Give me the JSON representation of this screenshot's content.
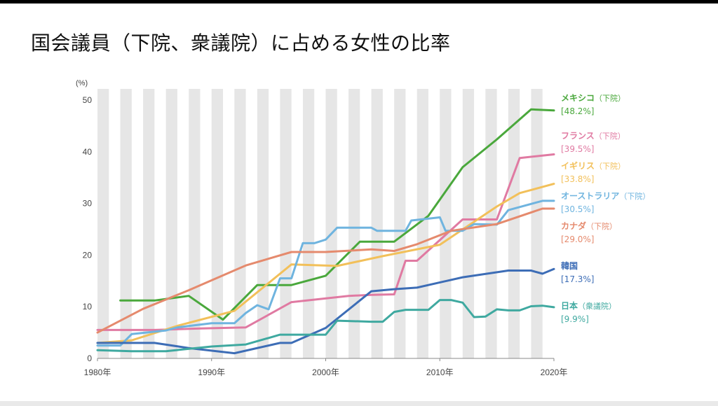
{
  "page": {
    "title": "国会議員（下院、衆議院）に占める女性の比率"
  },
  "chart_data": {
    "type": "line",
    "title": "国会議員（下院、衆議院）に占める女性の比率",
    "ylabel": "(%)",
    "xlabel": "",
    "xlim": [
      1980,
      2020
    ],
    "ylim": [
      0,
      50
    ],
    "x_ticks": [
      {
        "value": 1980,
        "label": "1980年"
      },
      {
        "value": 1990,
        "label": "1990年"
      },
      {
        "value": 2000,
        "label": "2000年"
      },
      {
        "value": 2010,
        "label": "2010年"
      },
      {
        "value": 2020,
        "label": "2020年"
      }
    ],
    "y_ticks": [
      {
        "value": 0,
        "label": "0"
      },
      {
        "value": 10,
        "label": "10"
      },
      {
        "value": 20,
        "label": "20"
      },
      {
        "value": 30,
        "label": "30"
      },
      {
        "value": 40,
        "label": "40"
      },
      {
        "value": 50,
        "label": "50"
      }
    ],
    "grid": "alternating vertical year bands",
    "legend_position": "right",
    "series": [
      {
        "key": "mexico",
        "name": "メキシコ",
        "note": "（下院）",
        "value_label": "[48.2%]",
        "color": "#4aa83c",
        "points": [
          [
            1982,
            11.2
          ],
          [
            1985,
            11.2
          ],
          [
            1988,
            12.1
          ],
          [
            1991,
            7.5
          ],
          [
            1994,
            14.2
          ],
          [
            1997,
            14.2
          ],
          [
            2000,
            16
          ],
          [
            2003,
            22.6
          ],
          [
            2006,
            22.6
          ],
          [
            2009,
            27.6
          ],
          [
            2012,
            37
          ],
          [
            2015,
            42.4
          ],
          [
            2018,
            48.2
          ],
          [
            2020,
            48
          ]
        ]
      },
      {
        "key": "france",
        "name": "フランス",
        "note": "（下院）",
        "value_label": "[39.5%]",
        "color": "#e07aa2",
        "points": [
          [
            1980,
            5.5
          ],
          [
            1985,
            5.5
          ],
          [
            1989,
            5.8
          ],
          [
            1993,
            6
          ],
          [
            1997,
            10.9
          ],
          [
            2002,
            12.1
          ],
          [
            2004,
            12.3
          ],
          [
            2006,
            12.4
          ],
          [
            2007,
            18.9
          ],
          [
            2008,
            18.9
          ],
          [
            2012,
            26.9
          ],
          [
            2015,
            26.9
          ],
          [
            2017,
            38.8
          ],
          [
            2020,
            39.5
          ]
        ]
      },
      {
        "key": "italy",
        "name": "イギリス",
        "note": "（下院）",
        "value_label": "[33.8%]",
        "color": "#f2c05a",
        "points": [
          [
            1980,
            3
          ],
          [
            1983,
            3.5
          ],
          [
            1987,
            6.3
          ],
          [
            1992,
            9.2
          ],
          [
            1997,
            18.2
          ],
          [
            2001,
            17.9
          ],
          [
            2005,
            19.8
          ],
          [
            2010,
            22
          ],
          [
            2015,
            29.4
          ],
          [
            2017,
            32
          ],
          [
            2020,
            33.8
          ]
        ]
      },
      {
        "key": "australia",
        "name": "オーストラリア",
        "note": "（下院）",
        "value_label": "[30.5%]",
        "color": "#6fb4df",
        "points": [
          [
            1980,
            2.5
          ],
          [
            1982,
            2.5
          ],
          [
            1983,
            4.7
          ],
          [
            1986,
            5.4
          ],
          [
            1987,
            6
          ],
          [
            1990,
            6.8
          ],
          [
            1992,
            6.8
          ],
          [
            1993,
            8.8
          ],
          [
            1994,
            10.3
          ],
          [
            1995,
            9.5
          ],
          [
            1996,
            15.5
          ],
          [
            1997,
            15.5
          ],
          [
            1998,
            22.3
          ],
          [
            1999,
            22.3
          ],
          [
            2000,
            23
          ],
          [
            2001,
            25.3
          ],
          [
            2004,
            25.3
          ],
          [
            2004.5,
            24.7
          ],
          [
            2007,
            24.7
          ],
          [
            2007.5,
            26.7
          ],
          [
            2010,
            27.3
          ],
          [
            2010.5,
            24.7
          ],
          [
            2012,
            24.7
          ],
          [
            2013,
            26
          ],
          [
            2015,
            25.9
          ],
          [
            2016,
            28.7
          ],
          [
            2019,
            30.5
          ],
          [
            2020,
            30.5
          ]
        ]
      },
      {
        "key": "canada",
        "name": "カナダ",
        "note": "（下院）",
        "value_label": "[29.0%]",
        "color": "#e58a6d",
        "points": [
          [
            1980,
            5
          ],
          [
            1984,
            9.6
          ],
          [
            1988,
            13.2
          ],
          [
            1993,
            18
          ],
          [
            1997,
            20.6
          ],
          [
            2000,
            20.6
          ],
          [
            2004,
            21.1
          ],
          [
            2006,
            20.8
          ],
          [
            2008,
            22.1
          ],
          [
            2011,
            24.7
          ],
          [
            2015,
            26
          ],
          [
            2019,
            29
          ],
          [
            2020,
            29
          ]
        ]
      },
      {
        "key": "korea",
        "name": "韓国",
        "note": "",
        "value_label": "[17.3%]",
        "color": "#3d6db6",
        "points": [
          [
            1980,
            3
          ],
          [
            1985,
            3
          ],
          [
            1988,
            2
          ],
          [
            1992,
            1
          ],
          [
            1996,
            3
          ],
          [
            1997,
            3
          ],
          [
            2000,
            5.9
          ],
          [
            2004,
            13
          ],
          [
            2006,
            13.4
          ],
          [
            2008,
            13.7
          ],
          [
            2012,
            15.7
          ],
          [
            2016,
            17
          ],
          [
            2018,
            17
          ],
          [
            2019,
            16.4
          ],
          [
            2020,
            17.3
          ]
        ]
      },
      {
        "key": "japan",
        "name": "日本",
        "note": "（衆議院）",
        "value_label": "[9.9%]",
        "color": "#3fa9a0",
        "points": [
          [
            1980,
            1.6
          ],
          [
            1983,
            1.4
          ],
          [
            1986,
            1.4
          ],
          [
            1990,
            2.3
          ],
          [
            1993,
            2.7
          ],
          [
            1996,
            4.6
          ],
          [
            2000,
            4.6
          ],
          [
            2001,
            7.3
          ],
          [
            2004,
            7.1
          ],
          [
            2005,
            7.1
          ],
          [
            2006,
            9
          ],
          [
            2007,
            9.4
          ],
          [
            2009,
            9.4
          ],
          [
            2010,
            11.3
          ],
          [
            2011,
            11.3
          ],
          [
            2012,
            10.8
          ],
          [
            2013,
            8
          ],
          [
            2014,
            8.1
          ],
          [
            2015,
            9.5
          ],
          [
            2016,
            9.3
          ],
          [
            2017,
            9.3
          ],
          [
            2018,
            10.1
          ],
          [
            2019,
            10.2
          ],
          [
            2020,
            9.9
          ]
        ]
      }
    ]
  }
}
